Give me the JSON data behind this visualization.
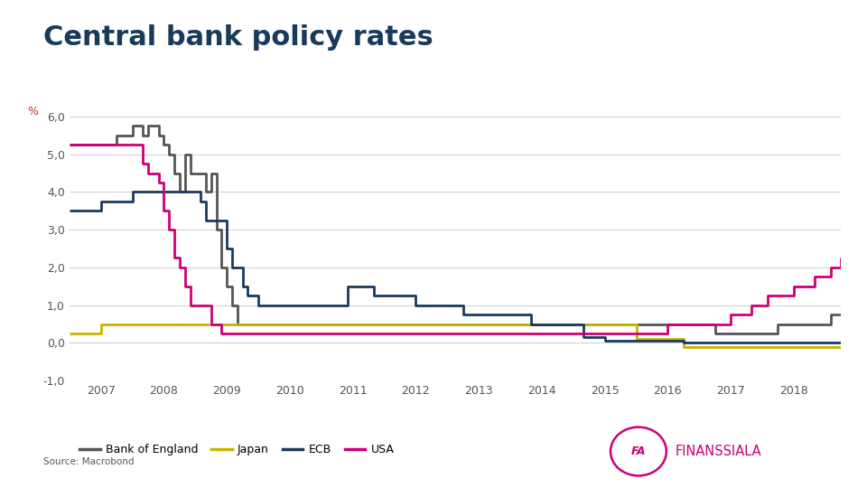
{
  "title": "Central bank policy rates",
  "title_color": "#1a3a5c",
  "title_fontsize": 22,
  "ylabel": "%",
  "ylabel_color": "#c0392b",
  "ylim": [
    -1.0,
    6.5
  ],
  "yticks": [
    -1.0,
    0.0,
    1.0,
    2.0,
    3.0,
    4.0,
    5.0,
    6.0
  ],
  "ytick_labels": [
    "-1,0",
    "0,0",
    "1,0",
    "2,0",
    "3,0",
    "4,0",
    "5,0",
    "6,0"
  ],
  "xlim_start": 2006.5,
  "xlim_end": 2018.75,
  "xtick_years": [
    2007,
    2008,
    2009,
    2010,
    2011,
    2012,
    2013,
    2014,
    2015,
    2016,
    2017,
    2018
  ],
  "background_color": "#ffffff",
  "grid_color": "#cccccc",
  "source_text": "Source: Macrobond",
  "legend_labels": [
    "Bank of England",
    "Japan",
    "ECB",
    "USA"
  ],
  "legend_colors": [
    "#555555",
    "#c8b400",
    "#1a3a5c",
    "#cc0077"
  ],
  "finanssiala_color": "#cc0077",
  "bank_of_england": {
    "dates": [
      2006.5,
      2007.0,
      2007.25,
      2007.5,
      2007.583,
      2007.667,
      2007.75,
      2007.833,
      2007.917,
      2008.0,
      2008.083,
      2008.167,
      2008.25,
      2008.333,
      2008.417,
      2008.5,
      2008.583,
      2008.667,
      2008.75,
      2008.833,
      2008.917,
      2009.0,
      2009.083,
      2009.167,
      2009.25,
      2016.75,
      2017.75,
      2018.583,
      2018.75
    ],
    "rates": [
      5.25,
      5.25,
      5.5,
      5.75,
      5.75,
      5.5,
      5.75,
      5.75,
      5.5,
      5.25,
      5.0,
      4.5,
      4.0,
      5.0,
      4.5,
      4.5,
      4.5,
      4.0,
      4.5,
      3.0,
      2.0,
      1.5,
      1.0,
      0.5,
      0.5,
      0.25,
      0.5,
      0.75,
      0.75
    ],
    "color": "#555555",
    "linewidth": 2.0
  },
  "japan": {
    "dates": [
      2006.5,
      2007.0,
      2008.5,
      2015.5,
      2016.25,
      2018.75
    ],
    "rates": [
      0.25,
      0.5,
      0.5,
      0.1,
      -0.1,
      -0.1
    ],
    "color": "#c8b400",
    "linewidth": 2.0
  },
  "ecb": {
    "dates": [
      2006.5,
      2006.75,
      2007.0,
      2007.5,
      2008.5,
      2008.583,
      2008.667,
      2008.917,
      2009.0,
      2009.083,
      2009.25,
      2009.333,
      2009.5,
      2009.917,
      2010.0,
      2010.833,
      2010.917,
      2011.0,
      2011.25,
      2011.333,
      2011.917,
      2012.0,
      2012.667,
      2012.75,
      2013.0,
      2013.167,
      2013.75,
      2013.833,
      2014.0,
      2014.583,
      2014.667,
      2014.917,
      2015.0,
      2016.167,
      2016.25,
      2018.75
    ],
    "rates": [
      3.5,
      3.5,
      3.75,
      4.0,
      4.0,
      3.75,
      3.25,
      3.25,
      2.5,
      2.0,
      1.5,
      1.25,
      1.0,
      1.0,
      1.0,
      1.0,
      1.5,
      1.5,
      1.5,
      1.25,
      1.25,
      1.0,
      1.0,
      0.75,
      0.75,
      0.75,
      0.75,
      0.5,
      0.5,
      0.5,
      0.15,
      0.15,
      0.05,
      0.05,
      0.0,
      0.0
    ],
    "color": "#1a3a5c",
    "linewidth": 2.0
  },
  "usa": {
    "dates": [
      2006.5,
      2007.0,
      2007.5,
      2007.667,
      2007.75,
      2007.917,
      2008.0,
      2008.083,
      2008.167,
      2008.25,
      2008.333,
      2008.417,
      2008.583,
      2008.75,
      2008.917,
      2009.0,
      2015.083,
      2015.917,
      2016.0,
      2016.083,
      2016.25,
      2016.917,
      2017.0,
      2017.25,
      2017.333,
      2017.5,
      2017.583,
      2017.917,
      2018.0,
      2018.25,
      2018.333,
      2018.5,
      2018.583,
      2018.75
    ],
    "rates": [
      5.25,
      5.25,
      5.25,
      4.75,
      4.5,
      4.25,
      3.5,
      3.0,
      2.25,
      2.0,
      1.5,
      1.0,
      1.0,
      0.5,
      0.25,
      0.25,
      0.25,
      0.25,
      0.5,
      0.5,
      0.5,
      0.5,
      0.75,
      0.75,
      1.0,
      1.0,
      1.25,
      1.25,
      1.5,
      1.5,
      1.75,
      1.75,
      2.0,
      2.25
    ],
    "color": "#cc0077",
    "linewidth": 2.0
  }
}
